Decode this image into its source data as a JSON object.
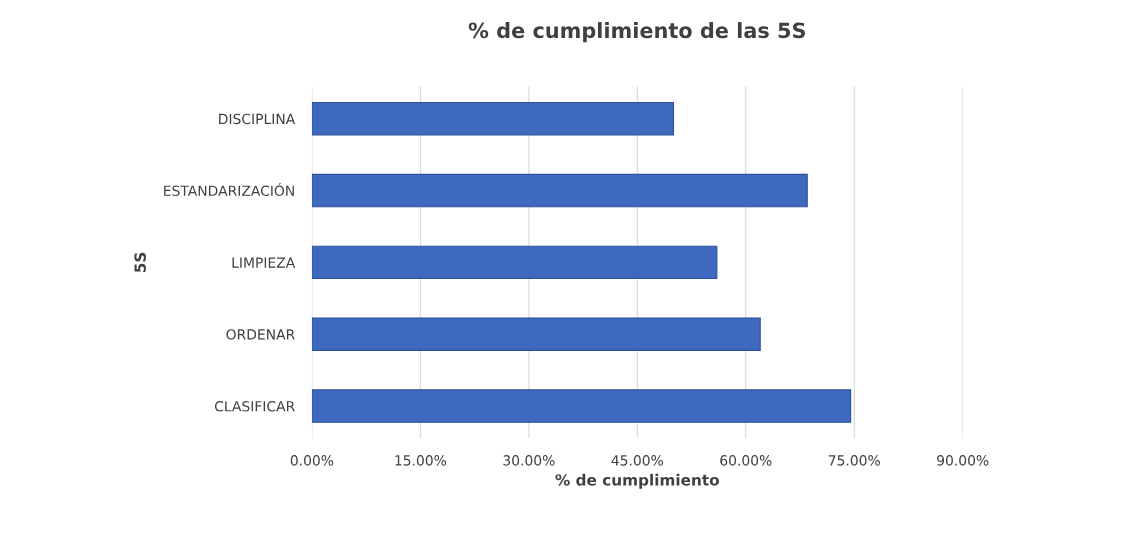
{
  "chart_data": {
    "type": "bar",
    "orientation": "horizontal",
    "title": "% de cumplimiento de las 5S",
    "xlabel": "% de cumplimiento",
    "ylabel": "5S",
    "categories": [
      "DISCIPLINA",
      "ESTANDARIZACIÓN",
      "LIMPIEZA",
      "ORDENAR",
      "CLASIFICAR"
    ],
    "values": [
      0.5,
      0.685,
      0.56,
      0.62,
      0.745
    ],
    "color": "#3f68bf",
    "xlim": [
      0,
      0.9
    ],
    "xticks": [
      {
        "value": 0,
        "label": "0.00%"
      },
      {
        "value": 0.15,
        "label": "15.00%"
      },
      {
        "value": 0.3,
        "label": "30.00%"
      },
      {
        "value": 0.45,
        "label": "45.00%"
      },
      {
        "value": 0.6,
        "label": "60.00%"
      },
      {
        "value": 0.75,
        "label": "75.00%"
      },
      {
        "value": 0.9,
        "label": "90.00%"
      }
    ],
    "grid": "x"
  }
}
